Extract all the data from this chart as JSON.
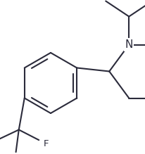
{
  "background_color": "#ffffff",
  "line_color": "#2b2b3b",
  "text_color": "#2b2b3b",
  "figsize": [
    2.06,
    2.19
  ],
  "dpi": 100,
  "lw": 1.5
}
